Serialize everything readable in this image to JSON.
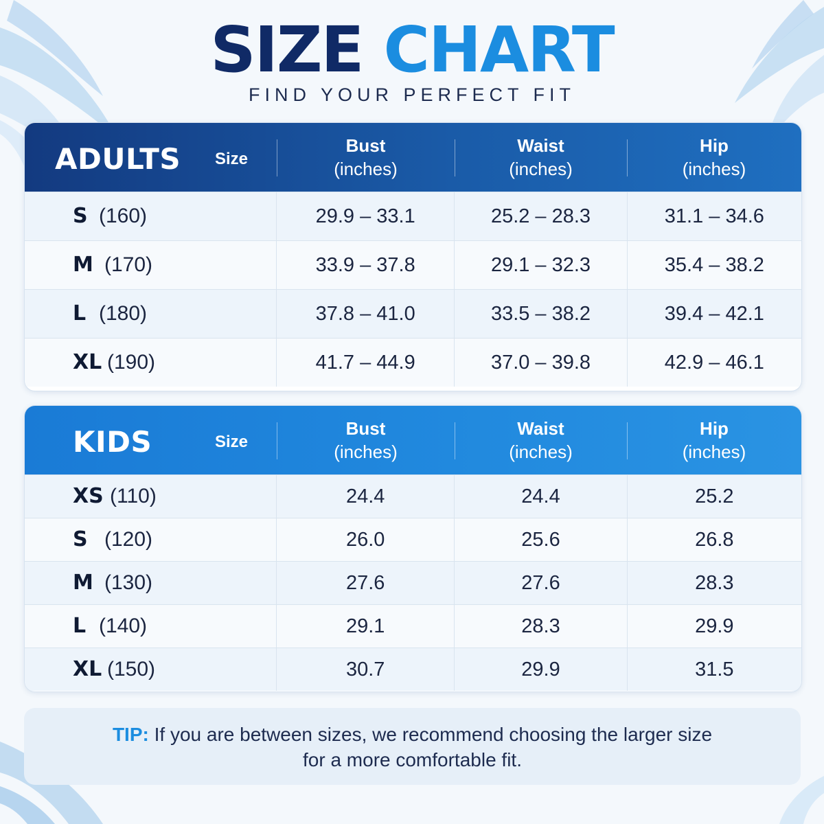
{
  "header": {
    "title_part1": "SIZE",
    "title_part2": "CHART",
    "subtitle": "FIND YOUR PERFECT FIT"
  },
  "colors": {
    "title_dark": "#102a66",
    "title_accent": "#1b8de0",
    "adults_header": "#133a80",
    "kids_header": "#1a7bd6"
  },
  "adults": {
    "category": "ADULTS",
    "size_label": "Size",
    "columns": [
      {
        "name": "Bust",
        "unit": "(inches)"
      },
      {
        "name": "Waist",
        "unit": "(inches)"
      },
      {
        "name": "Hip",
        "unit": "(inches)"
      }
    ],
    "rows": [
      {
        "size": "S",
        "height": "(160)",
        "values": [
          "29.9 – 33.1",
          "25.2 – 28.3",
          "31.1 – 34.6"
        ]
      },
      {
        "size": "M",
        "height": "(170)",
        "values": [
          "33.9 – 37.8",
          "29.1 – 32.3",
          "35.4 – 38.2"
        ]
      },
      {
        "size": "L",
        "height": "(180)",
        "values": [
          "37.8 – 41.0",
          "33.5 – 38.2",
          "39.4 – 42.1"
        ]
      },
      {
        "size": "XL",
        "height": "(190)",
        "values": [
          "41.7 – 44.9",
          "37.0 – 39.8",
          "42.9 – 46.1"
        ]
      }
    ]
  },
  "kids": {
    "category": "KIDS",
    "size_label": "Size",
    "columns": [
      {
        "name": "Bust",
        "unit": "(inches)"
      },
      {
        "name": "Waist",
        "unit": "(inches)"
      },
      {
        "name": "Hip",
        "unit": "(inches)"
      }
    ],
    "rows": [
      {
        "size": "XS",
        "height": "(110)",
        "values": [
          "24.4",
          "24.4",
          "25.2"
        ]
      },
      {
        "size": "S",
        "height": "(120)",
        "values": [
          "26.0",
          "25.6",
          "26.8"
        ]
      },
      {
        "size": "M",
        "height": "(130)",
        "values": [
          "27.6",
          "27.6",
          "28.3"
        ]
      },
      {
        "size": "L",
        "height": "(140)",
        "values": [
          "29.1",
          "28.3",
          "29.9"
        ]
      },
      {
        "size": "XL",
        "height": "(150)",
        "values": [
          "30.7",
          "29.9",
          "31.5"
        ]
      }
    ]
  },
  "tip": {
    "label": "TIP:",
    "line1": "If you are between sizes, we recommend choosing the larger size",
    "line2": "for a more comfortable fit."
  }
}
